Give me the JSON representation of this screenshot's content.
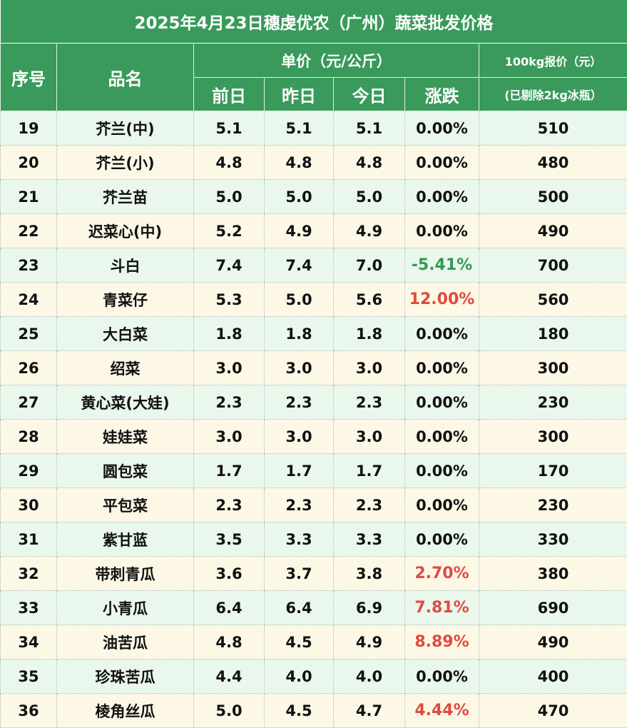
{
  "title": "2025年4月23日穗虔优农（广州）蔬菜批发价格",
  "headers": {
    "seq": "序号",
    "name": "品名",
    "unit_price": "单价（元/公斤）",
    "prev2": "前日",
    "prev1": "昨日",
    "today": "今日",
    "change": "涨跌",
    "quote": "100kg报价（元）",
    "quote_note": "(已剔除2kg冰瓶）"
  },
  "colors": {
    "header_green": "#3a9a5b",
    "row_green": "#eaf7ec",
    "row_cream": "#fdf7e6",
    "up_red": "#e04a3f",
    "down_green": "#2f9a55"
  },
  "rows": [
    {
      "seq": "19",
      "name": "芥兰(中)",
      "prev2": "5.1",
      "prev1": "5.1",
      "today": "5.1",
      "change": "0.00%",
      "trend": "flat",
      "quote": "510"
    },
    {
      "seq": "20",
      "name": "芥兰(小)",
      "prev2": "4.8",
      "prev1": "4.8",
      "today": "4.8",
      "change": "0.00%",
      "trend": "flat",
      "quote": "480"
    },
    {
      "seq": "21",
      "name": "芥兰苗",
      "prev2": "5.0",
      "prev1": "5.0",
      "today": "5.0",
      "change": "0.00%",
      "trend": "flat",
      "quote": "500"
    },
    {
      "seq": "22",
      "name": "迟菜心(中)",
      "prev2": "5.2",
      "prev1": "4.9",
      "today": "4.9",
      "change": "0.00%",
      "trend": "flat",
      "quote": "490"
    },
    {
      "seq": "23",
      "name": "斗白",
      "prev2": "7.4",
      "prev1": "7.4",
      "today": "7.0",
      "change": "-5.41%",
      "trend": "down",
      "quote": "700"
    },
    {
      "seq": "24",
      "name": "青菜仔",
      "prev2": "5.3",
      "prev1": "5.0",
      "today": "5.6",
      "change": "12.00%",
      "trend": "up",
      "quote": "560"
    },
    {
      "seq": "25",
      "name": "大白菜",
      "prev2": "1.8",
      "prev1": "1.8",
      "today": "1.8",
      "change": "0.00%",
      "trend": "flat",
      "quote": "180"
    },
    {
      "seq": "26",
      "name": "绍菜",
      "prev2": "3.0",
      "prev1": "3.0",
      "today": "3.0",
      "change": "0.00%",
      "trend": "flat",
      "quote": "300"
    },
    {
      "seq": "27",
      "name": "黄心菜(大娃)",
      "prev2": "2.3",
      "prev1": "2.3",
      "today": "2.3",
      "change": "0.00%",
      "trend": "flat",
      "quote": "230"
    },
    {
      "seq": "28",
      "name": "娃娃菜",
      "prev2": "3.0",
      "prev1": "3.0",
      "today": "3.0",
      "change": "0.00%",
      "trend": "flat",
      "quote": "300"
    },
    {
      "seq": "29",
      "name": "圆包菜",
      "prev2": "1.7",
      "prev1": "1.7",
      "today": "1.7",
      "change": "0.00%",
      "trend": "flat",
      "quote": "170"
    },
    {
      "seq": "30",
      "name": "平包菜",
      "prev2": "2.3",
      "prev1": "2.3",
      "today": "2.3",
      "change": "0.00%",
      "trend": "flat",
      "quote": "230"
    },
    {
      "seq": "31",
      "name": "紫甘蓝",
      "prev2": "3.5",
      "prev1": "3.3",
      "today": "3.3",
      "change": "0.00%",
      "trend": "flat",
      "quote": "330"
    },
    {
      "seq": "32",
      "name": "带刺青瓜",
      "prev2": "3.6",
      "prev1": "3.7",
      "today": "3.8",
      "change": "2.70%",
      "trend": "up",
      "quote": "380"
    },
    {
      "seq": "33",
      "name": "小青瓜",
      "prev2": "6.4",
      "prev1": "6.4",
      "today": "6.9",
      "change": "7.81%",
      "trend": "up",
      "quote": "690"
    },
    {
      "seq": "34",
      "name": "油苦瓜",
      "prev2": "4.8",
      "prev1": "4.5",
      "today": "4.9",
      "change": "8.89%",
      "trend": "up",
      "quote": "490"
    },
    {
      "seq": "35",
      "name": "珍珠苦瓜",
      "prev2": "4.4",
      "prev1": "4.0",
      "today": "4.0",
      "change": "0.00%",
      "trend": "flat",
      "quote": "400"
    },
    {
      "seq": "36",
      "name": "棱角丝瓜",
      "prev2": "5.0",
      "prev1": "4.5",
      "today": "4.7",
      "change": "4.44%",
      "trend": "up",
      "quote": "470"
    }
  ]
}
